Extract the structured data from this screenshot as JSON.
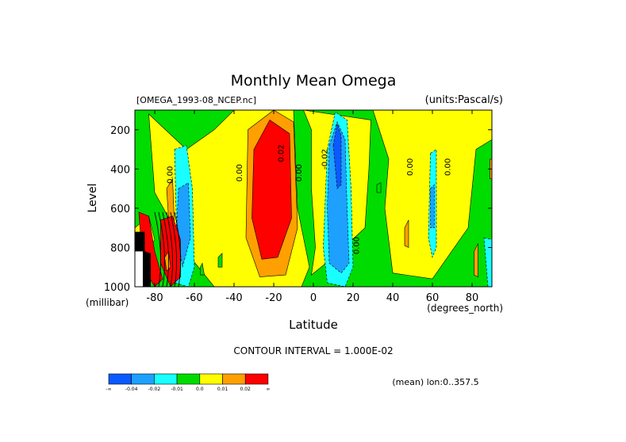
{
  "chart_data": {
    "type": "heatmap",
    "title": "Monthly Mean Omega",
    "file_label": "[OMEGA_1993-08_NCEP.nc]",
    "units_label": "(units:Pascal/s)",
    "xlabel": "Latitude",
    "x_units": "(degrees_north)",
    "ylabel": "Level",
    "y_units": "(millibar)",
    "xlim": [
      -90,
      90
    ],
    "ylim": [
      1000,
      100
    ],
    "x_ticks": [
      -80,
      -60,
      -40,
      -20,
      0,
      20,
      40,
      60,
      80
    ],
    "x_tick_labels": [
      "-80",
      "-60",
      "-40",
      "-20",
      "0",
      "20",
      "40",
      "60",
      "80"
    ],
    "y_ticks": [
      200,
      400,
      600,
      800,
      1000
    ],
    "y_tick_labels": [
      "200",
      "400",
      "600",
      "800",
      "1000"
    ],
    "contour_interval_text": "CONTOUR INTERVAL = 1.000E-02",
    "mean_text": "(mean) lon:0..357.5",
    "contour_labels": [
      {
        "text": "0.00",
        "lat": -71,
        "level": 430
      },
      {
        "text": "0.00",
        "lat": -36,
        "level": 420
      },
      {
        "text": "0.02",
        "lat": -15,
        "level": 320
      },
      {
        "text": "0.00",
        "lat": -6,
        "level": 420
      },
      {
        "text": "-0.02",
        "lat": 7,
        "level": 350
      },
      {
        "text": "0.00",
        "lat": 23,
        "level": 790
      },
      {
        "text": "0.00",
        "lat": 50,
        "level": 390
      },
      {
        "text": "0.00",
        "lat": 69,
        "level": 390
      }
    ],
    "legend": {
      "bins": [
        {
          "color": "#0a5aff"
        },
        {
          "color": "#1ea0ff"
        },
        {
          "color": "#19ffff"
        },
        {
          "color": "#00dc00"
        },
        {
          "color": "#ffff00"
        },
        {
          "color": "#ffa000"
        },
        {
          "color": "#ff0000"
        }
      ],
      "labels": [
        "-∞",
        "-0.04",
        "-0.02",
        "-0.01",
        "0.0",
        "0.01",
        "0.02",
        "∞"
      ]
    },
    "regions": [
      {
        "color": "#00dc00",
        "pts": [
          [
            -90,
            100
          ],
          [
            90,
            100
          ],
          [
            90,
            1000
          ],
          [
            -90,
            1000
          ]
        ]
      },
      {
        "color": "#ffff00",
        "pts": [
          [
            -83,
            120
          ],
          [
            -64,
            300
          ],
          [
            -50,
            200
          ],
          [
            -40,
            100
          ],
          [
            -10,
            100
          ],
          [
            -8,
            600
          ],
          [
            -2,
            900
          ],
          [
            -6,
            1000
          ],
          [
            -50,
            1000
          ],
          [
            -62,
            850
          ],
          [
            -80,
            520
          ]
        ]
      },
      {
        "color": "#ffff00",
        "pts": [
          [
            -5,
            100
          ],
          [
            -1,
            200
          ],
          [
            -1,
            500
          ],
          [
            1,
            800
          ],
          [
            -1,
            940
          ],
          [
            10,
            850
          ],
          [
            26,
            700
          ],
          [
            28,
            400
          ],
          [
            29,
            150
          ]
        ]
      },
      {
        "color": "#ffff00",
        "pts": [
          [
            30,
            100
          ],
          [
            38,
            350
          ],
          [
            36,
            600
          ],
          [
            40,
            930
          ],
          [
            60,
            960
          ],
          [
            78,
            700
          ],
          [
            82,
            300
          ],
          [
            90,
            250
          ],
          [
            90,
            100
          ]
        ]
      },
      {
        "color": "#ffff00",
        "pts": [
          [
            -90,
            700
          ],
          [
            -83,
            640
          ],
          [
            -80,
            760
          ],
          [
            -88,
            900
          ],
          [
            -90,
            900
          ]
        ]
      },
      {
        "color": "#ffa000",
        "pts": [
          [
            -33,
            200
          ],
          [
            -20,
            100
          ],
          [
            -10,
            160
          ],
          [
            -8,
            700
          ],
          [
            -14,
            940
          ],
          [
            -27,
            950
          ],
          [
            -34,
            750
          ]
        ]
      },
      {
        "color": "#ff0000",
        "pts": [
          [
            -30,
            300
          ],
          [
            -22,
            150
          ],
          [
            -12,
            220
          ],
          [
            -11,
            650
          ],
          [
            -18,
            850
          ],
          [
            -26,
            860
          ],
          [
            -31,
            650
          ]
        ]
      },
      {
        "color": "#00dc00",
        "pts": [
          [
            -73,
            800
          ],
          [
            -67,
            700
          ],
          [
            -65,
            930
          ],
          [
            -70,
            980
          ]
        ]
      },
      {
        "color": "#19ffff",
        "pts": [
          [
            -70,
            300
          ],
          [
            -64,
            280
          ],
          [
            -61,
            500
          ],
          [
            -60,
            900
          ],
          [
            -63,
            1000
          ],
          [
            -70,
            980
          ],
          [
            -69,
            700
          ]
        ]
      },
      {
        "color": "#1ea0ff",
        "pts": [
          [
            -68,
            500
          ],
          [
            -63,
            470
          ],
          [
            -62,
            750
          ],
          [
            -66,
            900
          ],
          [
            -69,
            700
          ]
        ]
      },
      {
        "color": "#ffa000",
        "pts": [
          [
            -74,
            500
          ],
          [
            -71,
            450
          ],
          [
            -70,
            700
          ],
          [
            -73,
            650
          ]
        ]
      },
      {
        "color": "#ff0000",
        "pts": [
          [
            -88,
            620
          ],
          [
            -83,
            640
          ],
          [
            -80,
            820
          ],
          [
            -76,
            960
          ],
          [
            -80,
            1000
          ],
          [
            -86,
            900
          ]
        ]
      },
      {
        "color": "#ff0000",
        "pts": [
          [
            -77,
            660
          ],
          [
            -71,
            640
          ],
          [
            -67,
            760
          ],
          [
            -67,
            950
          ],
          [
            -72,
            1000
          ],
          [
            -77,
            880
          ]
        ]
      },
      {
        "color": "#19ffff",
        "pts": [
          [
            7,
            300
          ],
          [
            11,
            110
          ],
          [
            17,
            150
          ],
          [
            19,
            500
          ],
          [
            20,
            900
          ],
          [
            16,
            1000
          ],
          [
            7,
            980
          ],
          [
            5,
            800
          ]
        ]
      },
      {
        "color": "#1ea0ff",
        "pts": [
          [
            8,
            280
          ],
          [
            12,
            160
          ],
          [
            16,
            250
          ],
          [
            17,
            600
          ],
          [
            18,
            880
          ],
          [
            14,
            930
          ],
          [
            8,
            880
          ],
          [
            7,
            600
          ]
        ]
      },
      {
        "color": "#0a5aff",
        "pts": [
          [
            10,
            280
          ],
          [
            12,
            170
          ],
          [
            14,
            230
          ],
          [
            14,
            480
          ],
          [
            12,
            500
          ]
        ]
      },
      {
        "color": "#19ffff",
        "pts": [
          [
            59,
            320
          ],
          [
            62,
            300
          ],
          [
            62,
            800
          ],
          [
            60,
            850
          ],
          [
            58,
            750
          ]
        ]
      },
      {
        "color": "#1ea0ff",
        "pts": [
          [
            59,
            500
          ],
          [
            61,
            480
          ],
          [
            61,
            700
          ],
          [
            59,
            700
          ]
        ]
      },
      {
        "color": "#ffa000",
        "pts": [
          [
            -75,
            850
          ],
          [
            -73,
            820
          ],
          [
            -72,
            900
          ],
          [
            -74,
            920
          ]
        ]
      },
      {
        "color": "#ffa000",
        "pts": [
          [
            46,
            700
          ],
          [
            48,
            660
          ],
          [
            48,
            800
          ],
          [
            46,
            790
          ]
        ]
      },
      {
        "color": "#ffa000",
        "pts": [
          [
            81,
            820
          ],
          [
            83,
            780
          ],
          [
            83,
            950
          ],
          [
            81,
            940
          ]
        ]
      },
      {
        "color": "#ffa000",
        "pts": [
          [
            89,
            350
          ],
          [
            90,
            350
          ],
          [
            90,
            450
          ],
          [
            89,
            450
          ]
        ]
      },
      {
        "color": "#00dc00",
        "pts": [
          [
            32,
            480
          ],
          [
            34,
            470
          ],
          [
            34,
            520
          ],
          [
            32,
            520
          ]
        ]
      },
      {
        "color": "#00dc00",
        "pts": [
          [
            -48,
            850
          ],
          [
            -46,
            830
          ],
          [
            -46,
            900
          ],
          [
            -48,
            900
          ]
        ]
      },
      {
        "color": "#00dc00",
        "pts": [
          [
            -57,
            900
          ],
          [
            -56,
            880
          ],
          [
            -55,
            940
          ],
          [
            -57,
            940
          ]
        ]
      },
      {
        "color": "#19ffff",
        "pts": [
          [
            86,
            750
          ],
          [
            90,
            760
          ],
          [
            90,
            1000
          ],
          [
            88,
            1000
          ]
        ]
      },
      {
        "color": "#000000",
        "pts": [
          [
            -90,
            720
          ],
          [
            -85,
            720
          ],
          [
            -85,
            820
          ],
          [
            -82,
            830
          ],
          [
            -82,
            1000
          ],
          [
            -90,
            1000
          ]
        ]
      },
      {
        "color": "#ffffff",
        "pts": [
          [
            -90,
            820
          ],
          [
            -86,
            820
          ],
          [
            -86,
            1000
          ],
          [
            -90,
            1000
          ]
        ]
      }
    ]
  }
}
